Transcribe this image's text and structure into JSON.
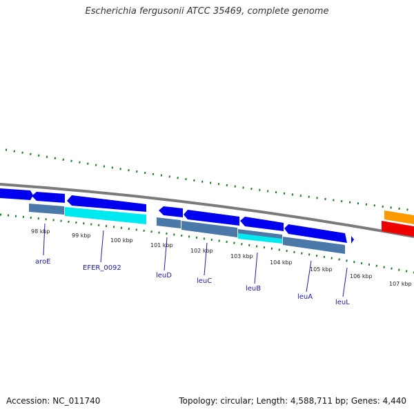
{
  "title": "Escherichia fergusonii ATCC 35469, complete genome",
  "footer": {
    "accession": "Accession: NC_011740",
    "summary": "Topology: circular; Length: 4,588,711 bp; Genes: 4,440"
  },
  "colors": {
    "cds_forward": "#0000ee",
    "cds_reverse_strip": "#4a78a8",
    "highlight": "#00e8f0",
    "backbone": "#777777",
    "gc_skew_dots": "#1e7a1e",
    "rna_orange": "#ff9900",
    "rna_red": "#ee0000",
    "gene_label": "#1a1aa8"
  },
  "scale": {
    "ticks": [
      "98 kbp",
      "99 kbp",
      "100 kbp",
      "101 kbp",
      "102 kbp",
      "103 kbp",
      "104 kbp",
      "105 kbp",
      "106 kbp",
      "107 kbp"
    ]
  },
  "genes": [
    "aroE",
    "EFER_0092",
    "leuD",
    "leuC",
    "leuB",
    "leuA",
    "leuL"
  ]
}
